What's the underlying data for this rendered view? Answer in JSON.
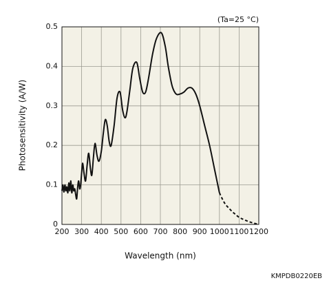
{
  "chart_data": {
    "type": "line",
    "annotation": "(Ta=25 °C)",
    "y_label": "Photosensitivity (A/W)",
    "x_label": "Wavelength (nm)",
    "code": "KMPDB0220EB",
    "x": [
      200,
      205,
      210,
      215,
      220,
      225,
      230,
      235,
      240,
      245,
      250,
      255,
      260,
      265,
      270,
      275,
      280,
      285,
      290,
      295,
      300,
      305,
      312,
      320,
      328,
      336,
      345,
      352,
      360,
      368,
      378,
      388,
      400,
      410,
      420,
      430,
      440,
      450,
      465,
      480,
      495,
      508,
      520,
      530,
      545,
      560,
      580,
      595,
      610,
      625,
      640,
      660,
      680,
      705,
      725,
      740,
      760,
      780,
      800,
      820,
      840,
      860,
      880,
      900,
      925,
      950,
      975,
      1000,
      1025,
      1050,
      1075,
      1100,
      1125,
      1150,
      1175,
      1200
    ],
    "series": [
      {
        "color": "#111111",
        "dash": false,
        "values": [
          0.085,
          0.1,
          0.082,
          0.1,
          0.085,
          0.095,
          0.08,
          0.105,
          0.085,
          0.11,
          0.08,
          0.1,
          0.085,
          0.09,
          0.075,
          0.065,
          0.095,
          0.11,
          0.09,
          0.1,
          0.13,
          0.155,
          0.13,
          0.11,
          0.15,
          0.18,
          0.14,
          0.125,
          0.17,
          0.205,
          0.175,
          0.16,
          0.185,
          0.23,
          0.265,
          0.25,
          0.21,
          0.2,
          0.25,
          0.32,
          0.335,
          0.29,
          0.27,
          0.285,
          0.34,
          0.395,
          0.41,
          0.37,
          0.335,
          0.335,
          0.37,
          0.43,
          0.47,
          0.485,
          0.45,
          0.4,
          0.35,
          0.33,
          0.33,
          0.335,
          0.345,
          0.345,
          0.33,
          0.3,
          0.25,
          0.2,
          0.14,
          0.08,
          null,
          null,
          null,
          null,
          null,
          null,
          null,
          null
        ]
      },
      {
        "color": "#111111",
        "dash": true,
        "values": [
          null,
          null,
          null,
          null,
          null,
          null,
          null,
          null,
          null,
          null,
          null,
          null,
          null,
          null,
          null,
          null,
          null,
          null,
          null,
          null,
          null,
          null,
          null,
          null,
          null,
          null,
          null,
          null,
          null,
          null,
          null,
          null,
          null,
          null,
          null,
          null,
          null,
          null,
          null,
          null,
          null,
          null,
          null,
          null,
          null,
          null,
          null,
          null,
          null,
          null,
          null,
          null,
          null,
          null,
          null,
          null,
          null,
          null,
          null,
          null,
          null,
          null,
          null,
          null,
          null,
          null,
          null,
          0.08,
          0.055,
          0.04,
          0.028,
          0.018,
          0.012,
          0.007,
          0.003,
          0
        ]
      }
    ],
    "xlim": [
      200,
      1200
    ],
    "xticks": [
      200,
      300,
      400,
      500,
      600,
      700,
      800,
      900,
      1000,
      1100,
      1200
    ],
    "ylim": [
      0,
      0.5
    ],
    "yticks": [
      0,
      0.1,
      0.2,
      0.3,
      0.4,
      0.5
    ],
    "grid": true,
    "background": "#f3f1e6"
  }
}
